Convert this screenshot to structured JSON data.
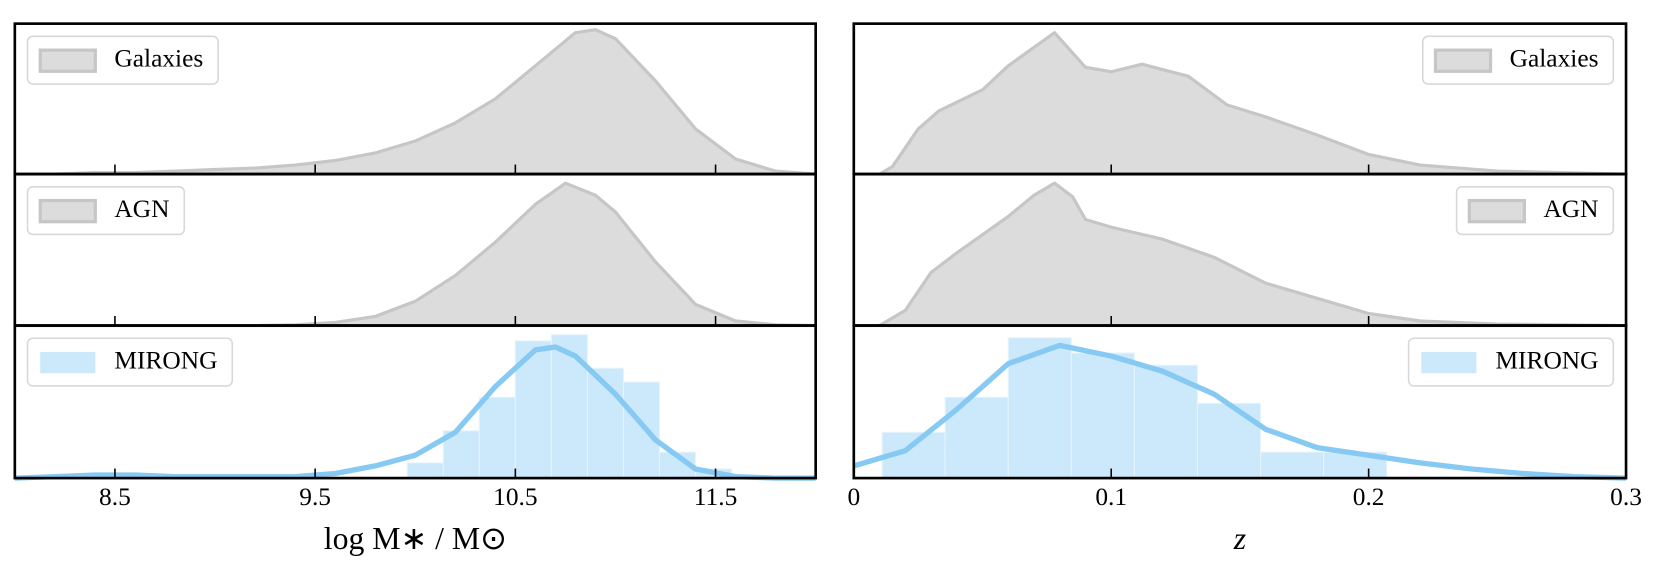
{
  "chart_data": [
    {
      "type": "area",
      "legend": "upper left",
      "xlim": [
        8,
        12
      ],
      "xticks": [
        8.5,
        9.5,
        10.5,
        11.5
      ],
      "ylim": [
        0,
        1
      ],
      "series": [
        {
          "name": "Galaxies",
          "color": "#dcdcdc",
          "edge_color": "#c6c6c6",
          "x": [
            8.0,
            8.2,
            8.4,
            8.6,
            8.8,
            9.0,
            9.2,
            9.4,
            9.6,
            9.8,
            10.0,
            10.2,
            10.4,
            10.6,
            10.8,
            10.9,
            11.0,
            11.2,
            11.4,
            11.6,
            11.8,
            12.0
          ],
          "values": [
            0,
            0,
            0.01,
            0.01,
            0.02,
            0.03,
            0.04,
            0.06,
            0.09,
            0.14,
            0.22,
            0.34,
            0.5,
            0.72,
            0.94,
            0.96,
            0.9,
            0.62,
            0.3,
            0.1,
            0.02,
            0
          ]
        }
      ]
    },
    {
      "type": "area",
      "legend": "upper left",
      "xlim": [
        8,
        12
      ],
      "xticks": [
        8.5,
        9.5,
        10.5,
        11.5
      ],
      "ylim": [
        0,
        1
      ],
      "series": [
        {
          "name": "AGN",
          "color": "#dcdcdc",
          "edge_color": "#c6c6c6",
          "x": [
            8.0,
            9.2,
            9.4,
            9.6,
            9.8,
            10.0,
            10.2,
            10.4,
            10.6,
            10.75,
            10.9,
            11.0,
            11.2,
            11.4,
            11.6,
            11.8,
            12.0
          ],
          "values": [
            0,
            0,
            0.005,
            0.02,
            0.06,
            0.16,
            0.33,
            0.55,
            0.8,
            0.94,
            0.86,
            0.75,
            0.42,
            0.14,
            0.03,
            0.005,
            0
          ]
        }
      ]
    },
    {
      "type": "histogram",
      "legend": "upper left",
      "xlim": [
        8,
        12
      ],
      "xticks": [
        8.5,
        9.5,
        10.5,
        11.5
      ],
      "ylim": [
        0,
        1
      ],
      "xlabel": "log  M∗ / M⊙",
      "bins": [
        9.96,
        10.14,
        10.32,
        10.5,
        10.68,
        10.86,
        11.04,
        11.22,
        11.4,
        11.58
      ],
      "series": [
        {
          "name": "MIRONG",
          "color": "#cce8fb",
          "values": [
            0.1,
            0.31,
            0.53,
            0.9,
            0.94,
            0.72,
            0.63,
            0.17,
            0.06
          ]
        }
      ],
      "line": {
        "color": "#86c9f3",
        "x": [
          8.0,
          8.2,
          8.4,
          8.6,
          8.8,
          9.0,
          9.2,
          9.4,
          9.6,
          9.8,
          10.0,
          10.2,
          10.4,
          10.6,
          10.7,
          10.8,
          11.0,
          11.2,
          11.4,
          11.6,
          11.8,
          12.0
        ],
        "values": [
          0.0,
          0.01,
          0.02,
          0.02,
          0.01,
          0.01,
          0.01,
          0.01,
          0.03,
          0.08,
          0.15,
          0.3,
          0.6,
          0.84,
          0.86,
          0.8,
          0.55,
          0.25,
          0.06,
          0.01,
          0.0,
          0
        ]
      }
    },
    {
      "type": "area",
      "legend": "upper right",
      "xlim": [
        0,
        0.3
      ],
      "xticks": [
        0,
        0.1,
        0.2,
        0.3
      ],
      "ylim": [
        0,
        1
      ],
      "series": [
        {
          "name": "Galaxies",
          "color": "#dcdcdc",
          "edge_color": "#c6c6c6",
          "x": [
            0,
            0.01,
            0.015,
            0.025,
            0.033,
            0.05,
            0.06,
            0.078,
            0.09,
            0.1,
            0.112,
            0.13,
            0.145,
            0.16,
            0.18,
            0.2,
            0.22,
            0.25,
            0.3
          ],
          "values": [
            0,
            0,
            0.05,
            0.3,
            0.42,
            0.56,
            0.72,
            0.94,
            0.71,
            0.68,
            0.73,
            0.65,
            0.46,
            0.38,
            0.26,
            0.13,
            0.06,
            0.02,
            0
          ]
        }
      ]
    },
    {
      "type": "area",
      "legend": "upper right",
      "xlim": [
        0,
        0.3
      ],
      "xticks": [
        0,
        0.1,
        0.2,
        0.3
      ],
      "ylim": [
        0,
        1
      ],
      "series": [
        {
          "name": "AGN",
          "color": "#dcdcdc",
          "edge_color": "#c6c6c6",
          "x": [
            0,
            0.01,
            0.02,
            0.03,
            0.04,
            0.05,
            0.06,
            0.07,
            0.078,
            0.085,
            0.09,
            0.1,
            0.12,
            0.14,
            0.16,
            0.18,
            0.2,
            0.22,
            0.25,
            0.3
          ],
          "values": [
            0,
            0,
            0.1,
            0.35,
            0.48,
            0.6,
            0.72,
            0.86,
            0.94,
            0.85,
            0.7,
            0.65,
            0.57,
            0.45,
            0.28,
            0.18,
            0.08,
            0.03,
            0.01,
            0
          ]
        }
      ]
    },
    {
      "type": "histogram",
      "legend": "upper right",
      "xlim": [
        0,
        0.3
      ],
      "xticks": [
        0,
        0.1,
        0.2,
        0.3
      ],
      "ylim": [
        0,
        1
      ],
      "xlabel": "z",
      "bins": [
        0.011,
        0.0355,
        0.06,
        0.0845,
        0.109,
        0.1335,
        0.158,
        0.1825,
        0.207
      ],
      "series": [
        {
          "name": "MIRONG",
          "color": "#cce8fb",
          "values": [
            0.3,
            0.53,
            0.92,
            0.82,
            0.74,
            0.49,
            0.17,
            0.17
          ]
        }
      ],
      "line": {
        "color": "#86c9f3",
        "x": [
          0,
          0.02,
          0.04,
          0.06,
          0.08,
          0.1,
          0.12,
          0.14,
          0.16,
          0.18,
          0.2,
          0.22,
          0.24,
          0.26,
          0.28,
          0.3
        ],
        "values": [
          0.08,
          0.18,
          0.45,
          0.75,
          0.87,
          0.8,
          0.7,
          0.55,
          0.32,
          0.2,
          0.15,
          0.1,
          0.06,
          0.03,
          0.01,
          0
        ]
      }
    }
  ]
}
